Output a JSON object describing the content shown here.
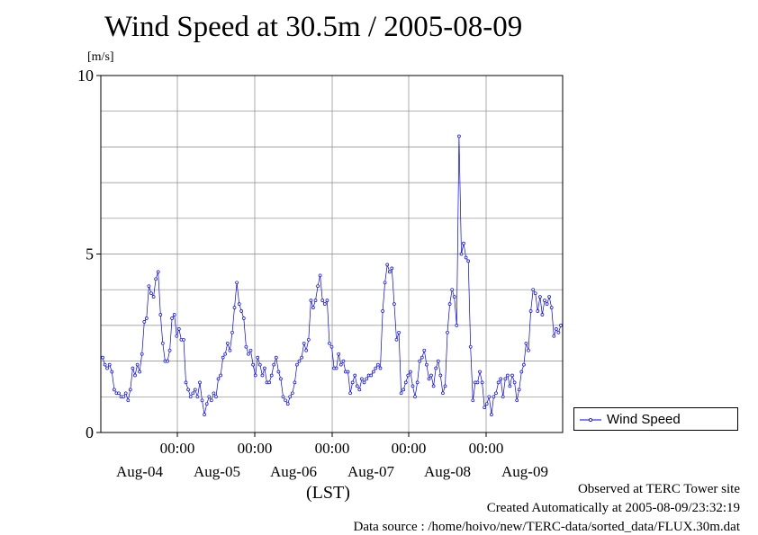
{
  "chart_data": {
    "type": "line",
    "title": "Wind Speed at 30.5m / 2005-08-09",
    "ylabel": "[m/s]",
    "xlabel": "(LST)",
    "ylim": [
      0,
      10
    ],
    "yticks": [
      0,
      5,
      10
    ],
    "x_time_ticks": [
      "00:00",
      "00:00",
      "00:00",
      "00:00",
      "00:00"
    ],
    "x_date_labels": [
      "Aug-04",
      "Aug-05",
      "Aug-06",
      "Aug-07",
      "Aug-08",
      "Aug-09"
    ],
    "grid": true,
    "legend_position": "bottom-right outside",
    "series": [
      {
        "name": "Wind Speed",
        "color": "#0000ff",
        "values": [
          2.1,
          1.9,
          1.8,
          1.9,
          1.7,
          1.2,
          1.1,
          1.1,
          1.0,
          1.0,
          1.1,
          0.9,
          1.2,
          1.8,
          1.6,
          1.9,
          1.7,
          2.2,
          3.1,
          3.2,
          4.1,
          3.9,
          3.8,
          4.3,
          4.5,
          3.3,
          2.5,
          2.0,
          2.0,
          2.3,
          3.2,
          3.3,
          2.7,
          2.9,
          2.6,
          2.6,
          1.4,
          1.2,
          1.0,
          1.1,
          1.2,
          1.0,
          1.4,
          0.9,
          0.5,
          0.8,
          1.0,
          0.9,
          1.1,
          1.0,
          1.5,
          1.6,
          2.1,
          2.2,
          2.5,
          2.3,
          2.8,
          3.5,
          4.2,
          3.6,
          3.4,
          3.2,
          2.4,
          2.2,
          2.3,
          1.9,
          1.6,
          2.1,
          1.9,
          1.6,
          1.8,
          1.4,
          1.4,
          1.6,
          1.9,
          2.1,
          1.7,
          1.5,
          1.0,
          0.9,
          0.8,
          1.0,
          1.1,
          1.4,
          1.9,
          2.0,
          2.1,
          2.5,
          2.3,
          2.6,
          3.7,
          3.5,
          3.7,
          4.1,
          4.4,
          3.7,
          3.6,
          3.7,
          2.5,
          2.4,
          1.8,
          1.8,
          2.2,
          1.9,
          2.0,
          1.7,
          1.7,
          1.1,
          1.4,
          1.6,
          1.3,
          1.2,
          1.5,
          1.4,
          1.5,
          1.6,
          1.6,
          1.7,
          1.8,
          1.9,
          1.8,
          3.4,
          4.2,
          4.7,
          4.5,
          4.6,
          3.6,
          2.6,
          2.8,
          1.1,
          1.2,
          1.4,
          1.6,
          1.7,
          1.3,
          1.0,
          1.4,
          2.0,
          2.1,
          2.3,
          1.9,
          1.5,
          1.6,
          1.3,
          1.8,
          2.0,
          1.6,
          1.1,
          1.3,
          2.8,
          3.6,
          4.0,
          3.8,
          3.0,
          8.3,
          5.0,
          5.3,
          4.9,
          4.8,
          2.4,
          0.9,
          1.4,
          1.4,
          1.7,
          1.4,
          0.7,
          0.8,
          1.0,
          0.5,
          1.0,
          1.1,
          1.4,
          1.5,
          1.0,
          1.5,
          1.6,
          1.3,
          1.6,
          1.4,
          0.9,
          1.2,
          1.7,
          1.9,
          2.5,
          2.3,
          3.4,
          4.0,
          3.9,
          3.4,
          3.8,
          3.3,
          3.7,
          3.6,
          3.8,
          3.5,
          2.7,
          2.9,
          2.8,
          3.0
        ]
      }
    ]
  },
  "footer": {
    "line1": "Observed at TERC Tower site",
    "line2": "Created Automatically at 2005-08-09/23:32:19",
    "line3": "Data source : /home/hoivo/new/TERC-data/sorted_data/FLUX.30m.dat"
  }
}
